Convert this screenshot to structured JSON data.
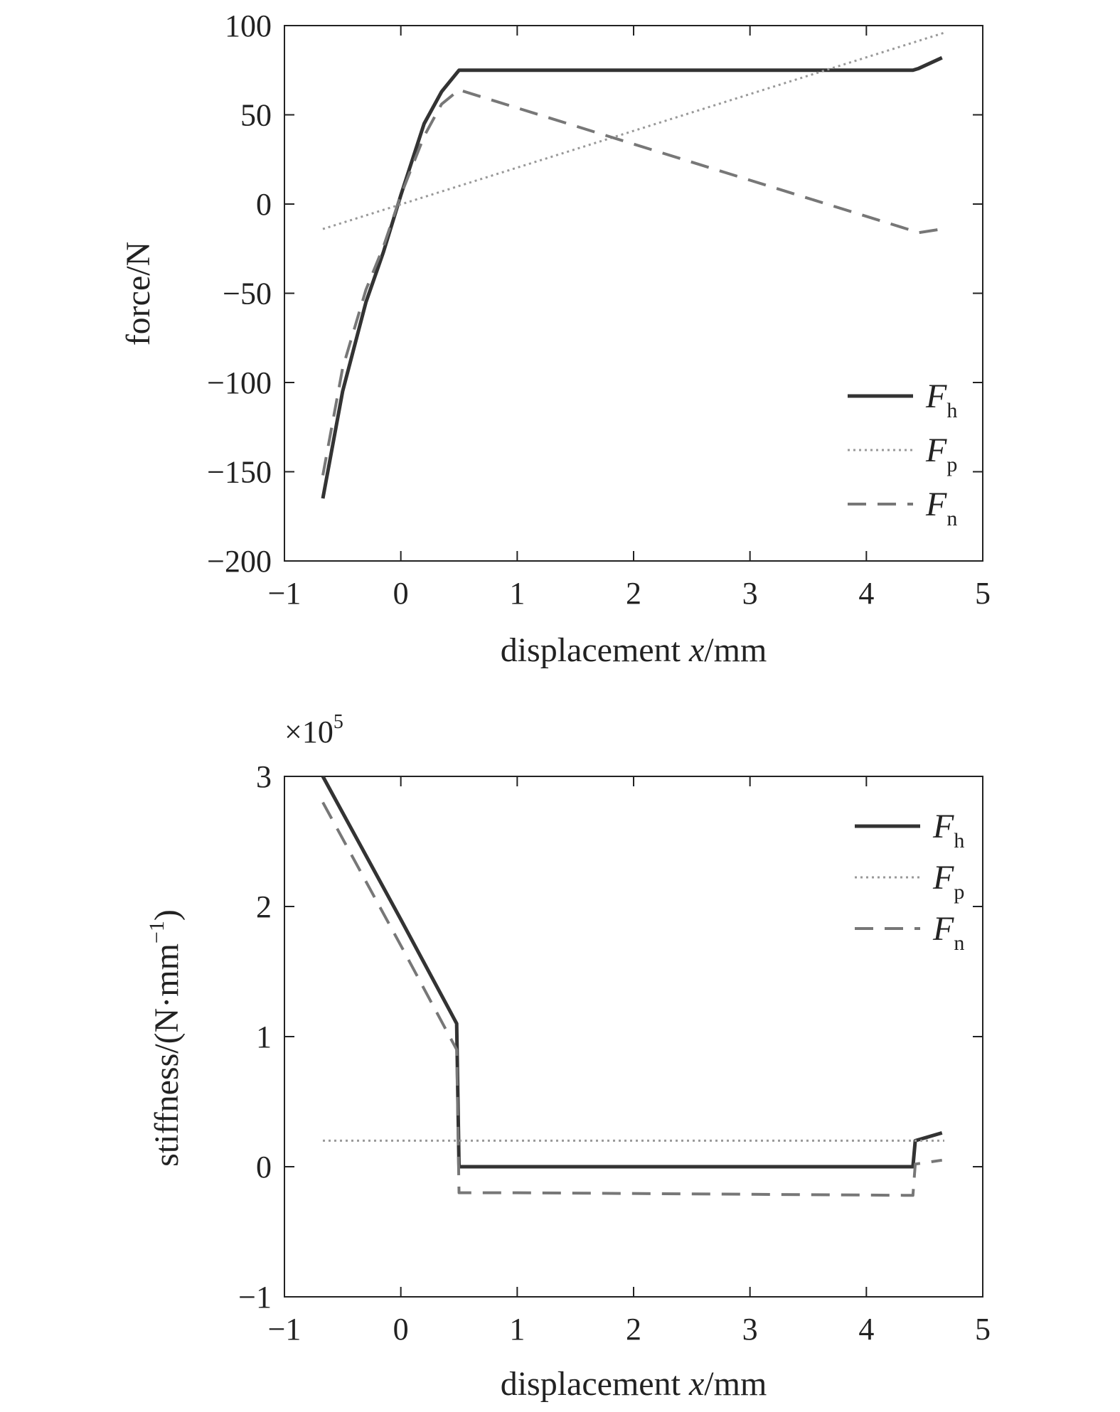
{
  "chart_data": [
    {
      "type": "line",
      "xlabel": "displacement x/mm",
      "xlabel_prefix": "displacement ",
      "xlabel_var": "x",
      "xlabel_suffix": "/mm",
      "ylabel": "force/N",
      "xlim": [
        -1,
        5
      ],
      "ylim": [
        -200,
        100
      ],
      "xticks": [
        -1,
        0,
        1,
        2,
        3,
        4,
        5
      ],
      "yticks": [
        -200,
        -150,
        -100,
        -50,
        0,
        50,
        100
      ],
      "xtick_labels": [
        "−1",
        "0",
        "1",
        "2",
        "3",
        "4",
        "5"
      ],
      "ytick_labels": [
        "−200",
        "−150",
        "−100",
        "−50",
        "0",
        "50",
        "100"
      ],
      "legend_position": "lower-right",
      "series": [
        {
          "name": "Fh",
          "label_main": "F",
          "label_sub": "h",
          "style": "solid",
          "color": "#333333",
          "x": [
            -0.67,
            -0.5,
            -0.3,
            -0.15,
            0,
            0.2,
            0.35,
            0.5,
            4.4,
            4.45,
            4.65
          ],
          "y": [
            -165,
            -105,
            -55,
            -27,
            5,
            45,
            63,
            75,
            75,
            76,
            82
          ]
        },
        {
          "name": "Fp",
          "label_main": "F",
          "label_sub": "p",
          "style": "dotted",
          "color": "#999999",
          "x": [
            -0.67,
            4.67
          ],
          "y": [
            -14,
            96
          ]
        },
        {
          "name": "Fn",
          "label_main": "F",
          "label_sub": "n",
          "style": "dashed",
          "color": "#777777",
          "x": [
            -0.67,
            -0.5,
            -0.3,
            -0.15,
            0,
            0.2,
            0.35,
            0.5,
            4.4,
            4.45,
            4.65
          ],
          "y": [
            -152,
            -92,
            -48,
            -24,
            5,
            38,
            56,
            64,
            -15,
            -16,
            -14
          ]
        }
      ]
    },
    {
      "type": "line",
      "xlabel": "displacement x/mm",
      "xlabel_prefix": "displacement ",
      "xlabel_var": "x",
      "xlabel_suffix": "/mm",
      "ylabel": "stiffness/(N·mm−1)",
      "ylabel_main": "stiffness/(N·mm",
      "ylabel_sup": "−1",
      "ylabel_close": ")",
      "scale_note_main": "×10",
      "scale_note_sup": "5",
      "xlim": [
        -1,
        5
      ],
      "ylim": [
        -1,
        3
      ],
      "xticks": [
        -1,
        0,
        1,
        2,
        3,
        4,
        5
      ],
      "yticks": [
        -1,
        0,
        1,
        2,
        3
      ],
      "xtick_labels": [
        "−1",
        "0",
        "1",
        "2",
        "3",
        "4",
        "5"
      ],
      "ytick_labels": [
        "−1",
        "0",
        "1",
        "2",
        "3"
      ],
      "legend_position": "upper-right",
      "series": [
        {
          "name": "Fh",
          "label_main": "F",
          "label_sub": "h",
          "style": "solid",
          "color": "#333333",
          "x": [
            -0.67,
            0,
            0.45,
            0.48,
            0.5,
            1,
            4.4,
            4.42,
            4.65
          ],
          "y": [
            3.0,
            1.9,
            1.15,
            1.1,
            0.0,
            0.0,
            0.0,
            0.2,
            0.26
          ]
        },
        {
          "name": "Fp",
          "label_main": "F",
          "label_sub": "p",
          "style": "dotted",
          "color": "#999999",
          "x": [
            -0.67,
            4.67
          ],
          "y": [
            0.2,
            0.2
          ]
        },
        {
          "name": "Fn",
          "label_main": "F",
          "label_sub": "n",
          "style": "dashed",
          "color": "#777777",
          "x": [
            -0.67,
            0,
            0.45,
            0.48,
            0.5,
            1,
            4.4,
            4.42,
            4.65
          ],
          "y": [
            2.8,
            1.7,
            0.95,
            0.9,
            -0.2,
            -0.2,
            -0.22,
            0.02,
            0.05
          ]
        }
      ]
    }
  ]
}
